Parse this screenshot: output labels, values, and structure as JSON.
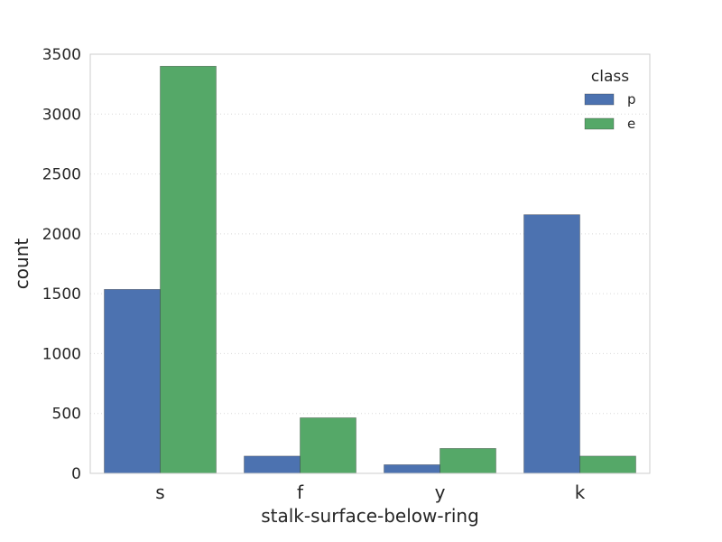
{
  "chart_data": {
    "type": "bar",
    "categories": [
      "s",
      "f",
      "y",
      "k"
    ],
    "series": [
      {
        "name": "p",
        "values": [
          1536,
          144,
          72,
          2160
        ]
      },
      {
        "name": "e",
        "values": [
          3400,
          464,
          208,
          144
        ]
      }
    ],
    "xlabel": "stalk-surface-below-ring",
    "ylabel": "count",
    "ylim": [
      0,
      3500
    ],
    "yticks": [
      0,
      500,
      1000,
      1500,
      2000,
      2500,
      3000,
      3500
    ],
    "legend": {
      "title": "class",
      "placement": "top-right"
    },
    "grid": "horizontal-dotted"
  },
  "colors": {
    "p": "#4c72b0",
    "e": "#55a868",
    "grid": "#d9d9d9",
    "frame": "#cccccc",
    "text": "#262626"
  }
}
